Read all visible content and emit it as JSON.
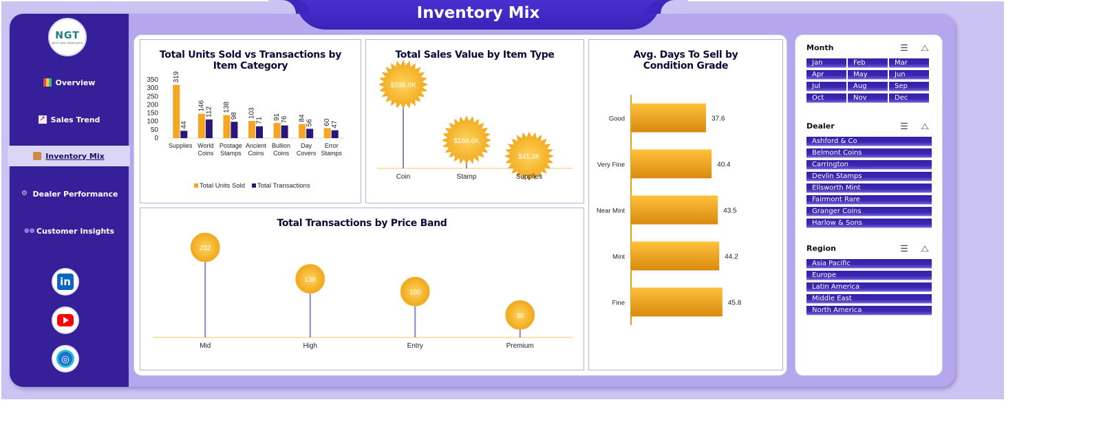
{
  "page_title": "Inventory Mix",
  "logo": {
    "text": "NGT",
    "subtext": "NEXT GEN TEMPLATES"
  },
  "nav": [
    {
      "label": "Overview",
      "icon": "bar-chart-icon",
      "active": false
    },
    {
      "label": "Sales Trend",
      "icon": "line-chart-icon",
      "active": false
    },
    {
      "label": "Inventory Mix",
      "icon": "box-icon",
      "active": true
    },
    {
      "label": "Dealer Performance",
      "icon": "gear-icon",
      "active": false
    },
    {
      "label": "Customer Insights",
      "icon": "users-icon",
      "active": false
    }
  ],
  "social": [
    "linkedin-icon",
    "youtube-icon",
    "globe-icon"
  ],
  "colors": {
    "orange": "#f5a623",
    "navy": "#2a167a",
    "purple": "#35209a",
    "axis": "#f3c66a"
  },
  "chart_data": [
    {
      "type": "bar",
      "title": "Total Units Sold vs Transactions by Item Category",
      "categories": [
        "Supplies",
        "World Coins",
        "Postage Stamps",
        "Ancient Coins",
        "Bullion Coins",
        "Day Covers",
        "Error Stamps"
      ],
      "category_lines": [
        [
          "Supplies"
        ],
        [
          "World",
          "Coins"
        ],
        [
          "Postage",
          "Stamps"
        ],
        [
          "Ancient",
          "Coins"
        ],
        [
          "Bullion",
          "Coins"
        ],
        [
          "Day",
          "Covers"
        ],
        [
          "Error",
          "Stamps"
        ]
      ],
      "series": [
        {
          "name": "Total Units Sold",
          "values": [
            319,
            146,
            138,
            103,
            91,
            84,
            60
          ]
        },
        {
          "name": "Total Transactions",
          "values": [
            44,
            112,
            98,
            71,
            76,
            56,
            47
          ]
        }
      ],
      "yticks": [
        0,
        50,
        100,
        150,
        200,
        250,
        300,
        350
      ],
      "ylim": [
        0,
        350
      ],
      "legend": "bottom"
    },
    {
      "type": "scatter",
      "title": "Total Sales Value by Item Type",
      "categories": [
        "Coin",
        "Stamp",
        "Supplies"
      ],
      "values": [
        596.0,
        164.6,
        41.3
      ],
      "labels": [
        "$596.0K",
        "$164.6K",
        "$41.3K"
      ]
    },
    {
      "type": "bar",
      "title": "Avg. Days To Sell by Condition Grade",
      "categories": [
        "Good",
        "Very Fine",
        "Near Mint",
        "Mint",
        "Fine"
      ],
      "values": [
        37.6,
        40.4,
        43.5,
        44.2,
        45.8
      ],
      "orientation": "horizontal"
    },
    {
      "type": "scatter",
      "title": "Total Transactions by Price Band",
      "categories": [
        "Mid",
        "High",
        "Entry",
        "Premium"
      ],
      "values": [
        232,
        138,
        100,
        30
      ]
    }
  ],
  "filters": [
    {
      "title": "Month",
      "items": [
        "Jan",
        "Feb",
        "Mar",
        "Apr",
        "May",
        "Jun",
        "Jul",
        "Aug",
        "Sep",
        "Oct",
        "Nov",
        "Dec"
      ]
    },
    {
      "title": "Dealer",
      "items": [
        "Ashford & Co",
        "Belmont Coins",
        "Carrington",
        "Devlin Stamps",
        "Ellsworth Mint",
        "Fairmont Rare",
        "Granger Coins",
        "Harlow & Sons"
      ]
    },
    {
      "title": "Region",
      "items": [
        "Asia Pacific",
        "Europe",
        "Latin America",
        "Middle East",
        "North America"
      ]
    }
  ]
}
